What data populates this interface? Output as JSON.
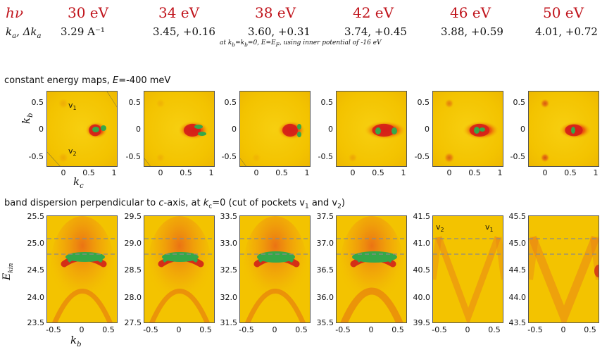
{
  "header": {
    "hv_label": "hν",
    "k_label": "k",
    "k_sub_a": "a",
    "k_delta": ", Δk",
    "k_sub_a2": "a",
    "energies": [
      "30 eV",
      "34 eV",
      "38 eV",
      "42 eV",
      "46 eV",
      "50 eV"
    ],
    "k_values": [
      "3.29 A⁻¹",
      "3.45, +0.16",
      "3.60, +0.31",
      "3.74, +0.45",
      "3.88, +0.59",
      "4.01, +0.72"
    ],
    "note_prefix": "at k",
    "note_sub1": "b",
    "note_mid": "=k",
    "note_sub2": "b",
    "note_mid2": "=0,  E=E",
    "note_sub3": "F",
    "note_suffix": ", using inner potential of -16 eV"
  },
  "section1": {
    "title_pre": "constant energy maps, ",
    "title_E": "E",
    "title_post": "=-400 meV",
    "y_label": "k",
    "y_label_sub": "b",
    "x_label": "k",
    "x_label_sub": "c",
    "y_ticks": [
      "0.5",
      "0",
      "-0.5"
    ],
    "x_ticks": [
      "0",
      "0.5",
      "1"
    ],
    "v1": "v",
    "v1_sub": "1",
    "v2": "v",
    "v2_sub": "2"
  },
  "section2": {
    "title_pre": "band dispersion perpendicular to ",
    "title_c": "c",
    "title_mid": "-axis, at ",
    "title_k": "k",
    "title_k_sub": "c",
    "title_mid2": "=0 (cut of pockets v",
    "title_v1_sub": "1",
    "title_and": " and v",
    "title_v2_sub": "2",
    "title_end": ")",
    "y_label": "E",
    "y_label_sub": "kin",
    "x_label": "k",
    "x_label_sub": "b",
    "x_ticks": [
      "-0.5",
      "0",
      "0.5"
    ],
    "y_ticks": [
      [
        "25.5",
        "25.0",
        "24.5",
        "24.0",
        "23.5"
      ],
      [
        "29.5",
        "29.0",
        "28.5",
        "28.0",
        "27.5"
      ],
      [
        "33.5",
        "33.0",
        "32.5",
        "32.0",
        "31.5"
      ],
      [
        "37.5",
        "37.0",
        "36.5",
        "36.0",
        "35.5"
      ],
      [
        "41.5",
        "41.0",
        "40.5",
        "40.0",
        "39.5"
      ],
      [
        "45.5",
        "45.0",
        "44.5",
        "44.0",
        "43.5"
      ]
    ],
    "v2_label": "v",
    "v2_sub": "2",
    "v1_label": "v",
    "v1_sub": "1"
  },
  "colors": {
    "bg_yellow": "#f5c800",
    "orange": "#f08000",
    "red": "#d2141c",
    "green": "#3aa84a",
    "title_red": "#c0141c"
  }
}
